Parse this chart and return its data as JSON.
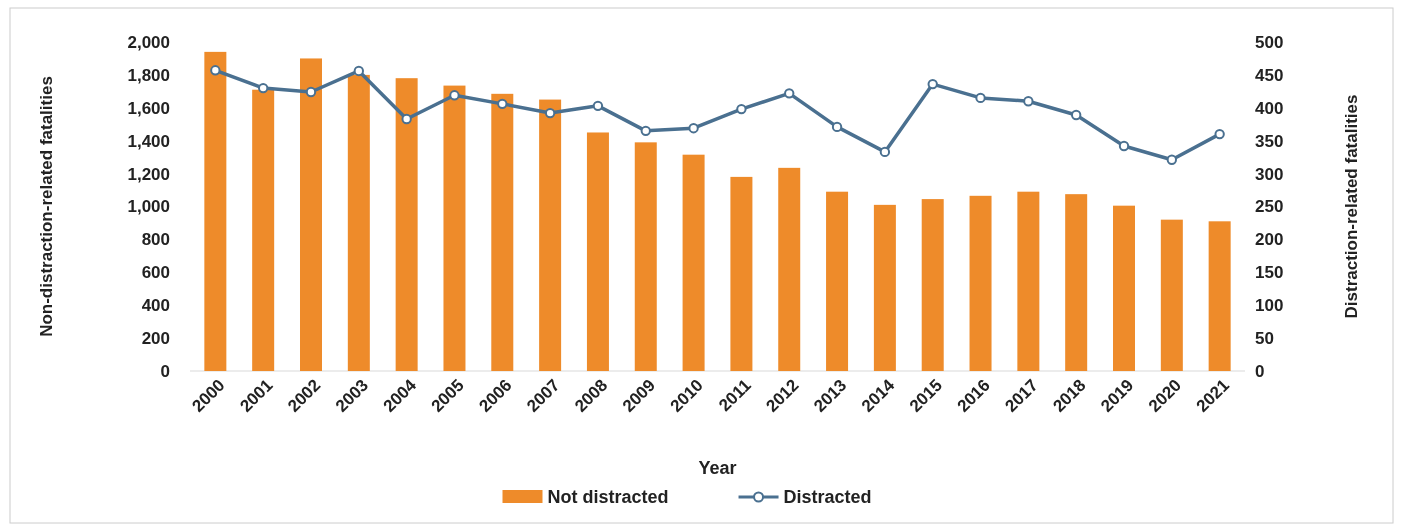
{
  "chart_data": {
    "type": "bar",
    "xlabel": "Year",
    "ylabel": "Non-distraction-related fatalities",
    "y2label": "Distraction-related fatalities",
    "categories": [
      "2000",
      "2001",
      "2002",
      "2003",
      "2004",
      "2005",
      "2006",
      "2007",
      "2008",
      "2009",
      "2010",
      "2011",
      "2012",
      "2013",
      "2014",
      "2015",
      "2016",
      "2017",
      "2018",
      "2019",
      "2020",
      "2021"
    ],
    "series": [
      {
        "name": "Not distracted",
        "color": "#ee8b2a",
        "values": [
          1940,
          1710,
          1900,
          1800,
          1780,
          1735,
          1685,
          1650,
          1450,
          1390,
          1315,
          1180,
          1235,
          1090,
          1010,
          1045,
          1065,
          1090,
          1075,
          1005,
          920,
          910
        ]
      },
      {
        "name": "Distracted",
        "type": "line",
        "axis": "y2",
        "color": "#4a7090",
        "marker": "circle",
        "values": [
          457,
          430,
          424,
          456,
          383,
          419,
          406,
          392,
          403,
          365,
          369,
          398,
          422,
          371,
          333,
          436,
          415,
          410,
          389,
          342,
          321,
          360
        ]
      }
    ],
    "ylim": [
      0,
      2000
    ],
    "yticks": [
      0,
      {
        "value": 200,
        "label": "200"
      },
      {
        "value": 400,
        "label": "400"
      },
      {
        "value": 600,
        "label": "600"
      },
      {
        "value": 800,
        "label": "800"
      },
      {
        "value": 1000,
        "label": "1,000"
      },
      {
        "value": 1200,
        "label": "1,200"
      },
      {
        "value": 1400,
        "label": "1,400"
      },
      {
        "value": 1600,
        "label": "1,600"
      },
      {
        "value": 1800,
        "label": "1,800"
      },
      {
        "value": 2000,
        "label": "2,000"
      }
    ],
    "y2lim": [
      0,
      500
    ],
    "y2ticks": [
      0,
      50,
      100,
      150,
      200,
      250,
      300,
      350,
      400,
      450,
      500
    ],
    "grid": false,
    "legend": "bottom"
  }
}
